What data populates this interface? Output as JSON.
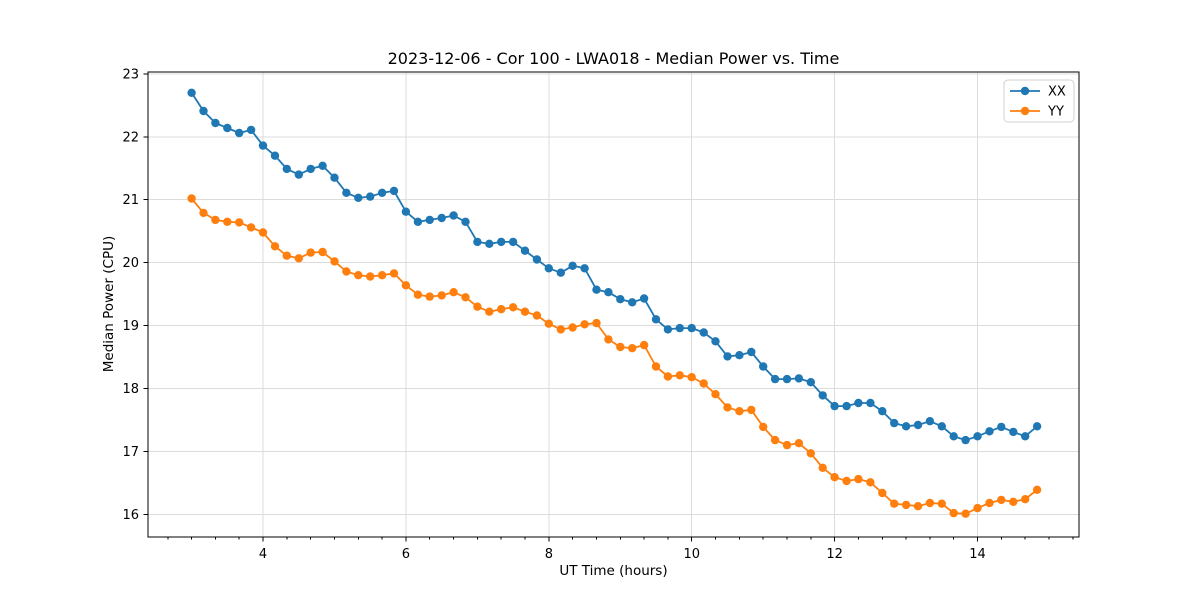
{
  "page": {
    "background": "#ffffff"
  },
  "chart_data": {
    "type": "line",
    "title": "2023-12-06 - Cor 100 - LWA018 - Median Power vs. Time",
    "xlabel": "UT Time (hours)",
    "ylabel": "Median Power (CPU)",
    "xlim": [
      2.39,
      15.42
    ],
    "ylim": [
      15.64,
      23.03
    ],
    "x_major_ticks": [
      4,
      6,
      8,
      10,
      12,
      14
    ],
    "x_minor_step": 0.33333,
    "y_major_ticks": [
      16,
      17,
      18,
      19,
      20,
      21,
      22,
      23
    ],
    "grid": true,
    "grid_color": "#dcdcdc",
    "axis_color": "#000000",
    "legend_position": "upper right",
    "x": [
      3.0,
      3.167,
      3.333,
      3.5,
      3.667,
      3.833,
      4.0,
      4.167,
      4.333,
      4.5,
      4.667,
      4.833,
      5.0,
      5.167,
      5.333,
      5.5,
      5.667,
      5.833,
      6.0,
      6.167,
      6.333,
      6.5,
      6.667,
      6.833,
      7.0,
      7.167,
      7.333,
      7.5,
      7.667,
      7.833,
      8.0,
      8.167,
      8.333,
      8.5,
      8.667,
      8.833,
      9.0,
      9.167,
      9.333,
      9.5,
      9.667,
      9.833,
      10.0,
      10.167,
      10.333,
      10.5,
      10.667,
      10.833,
      11.0,
      11.167,
      11.333,
      11.5,
      11.667,
      11.833,
      12.0,
      12.167,
      12.333,
      12.5,
      12.667,
      12.833,
      13.0,
      13.167,
      13.333,
      13.5,
      13.667,
      13.833,
      14.0,
      14.167,
      14.333,
      14.5,
      14.667,
      14.833
    ],
    "series": [
      {
        "name": "XX",
        "color": "#1f77b4",
        "values": [
          22.7,
          22.41,
          22.22,
          22.14,
          22.06,
          22.11,
          21.86,
          21.7,
          21.49,
          21.4,
          21.49,
          21.54,
          21.35,
          21.11,
          21.03,
          21.05,
          21.11,
          21.14,
          20.81,
          20.65,
          20.68,
          20.71,
          20.75,
          20.65,
          20.33,
          20.3,
          20.33,
          20.33,
          20.19,
          20.05,
          19.91,
          19.84,
          19.95,
          19.91,
          19.57,
          19.53,
          19.42,
          19.37,
          19.43,
          19.1,
          18.94,
          18.96,
          18.96,
          18.89,
          18.75,
          18.51,
          18.53,
          18.58,
          18.35,
          18.15,
          18.15,
          18.16,
          18.1,
          17.89,
          17.72,
          17.72,
          17.77,
          17.77,
          17.64,
          17.45,
          17.4,
          17.42,
          17.48,
          17.4,
          17.24,
          17.18,
          17.24,
          17.32,
          17.39,
          17.31,
          17.24,
          17.4
        ]
      },
      {
        "name": "YY",
        "color": "#ff7f0e",
        "values": [
          21.02,
          20.79,
          20.68,
          20.65,
          20.64,
          20.56,
          20.48,
          20.26,
          20.11,
          20.07,
          20.16,
          20.17,
          20.02,
          19.86,
          19.8,
          19.78,
          19.8,
          19.83,
          19.64,
          19.49,
          19.46,
          19.48,
          19.53,
          19.45,
          19.3,
          19.22,
          19.26,
          19.29,
          19.22,
          19.16,
          19.03,
          18.94,
          18.97,
          19.02,
          19.04,
          18.78,
          18.66,
          18.64,
          18.69,
          18.35,
          18.19,
          18.21,
          18.18,
          18.08,
          17.91,
          17.7,
          17.64,
          17.66,
          17.39,
          17.18,
          17.1,
          17.13,
          16.97,
          16.74,
          16.59,
          16.53,
          16.56,
          16.51,
          16.34,
          16.17,
          16.15,
          16.13,
          16.18,
          16.17,
          16.02,
          16.01,
          16.1,
          16.18,
          16.23,
          16.2,
          16.24,
          16.39
        ]
      }
    ]
  }
}
